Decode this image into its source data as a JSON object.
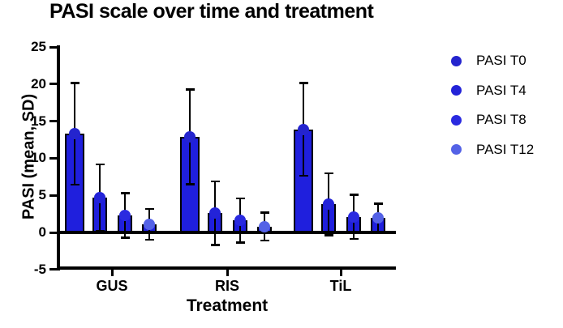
{
  "title": "PASI scale over time and treatment",
  "axes": {
    "y_label": "PASI (mean, SD)",
    "x_label": "Treatment",
    "y_ticks": [
      25,
      20,
      15,
      10,
      5,
      0,
      -5
    ],
    "categories": [
      "GUS",
      "RIS",
      "TiL"
    ]
  },
  "legend": {
    "items": [
      {
        "label": "PASI T0",
        "color": "#2424ce"
      },
      {
        "label": "PASI T4",
        "color": "#2323d8"
      },
      {
        "label": "PASI T8",
        "color": "#2a2ae0"
      },
      {
        "label": "PASI T12",
        "color": "#5462e6"
      }
    ]
  },
  "colors": {
    "bar_fill": "#1f1fdd",
    "axis": "#000000"
  },
  "chart_data": {
    "type": "bar",
    "title": "PASI scale over time and treatment",
    "xlabel": "Treatment",
    "ylabel": "PASI (mean, SD)",
    "ylim": [
      -5,
      25
    ],
    "categories": [
      "GUS",
      "RIS",
      "TiL"
    ],
    "error_bars": "SD",
    "legend_position": "right",
    "grid": false,
    "bar_fill": "#1f1fdd",
    "series": [
      {
        "name": "PASI T0",
        "means": [
          13.3,
          12.9,
          13.9
        ],
        "sd": [
          6.9,
          6.4,
          6.3
        ],
        "marker_color": "#2424ce"
      },
      {
        "name": "PASI T4",
        "means": [
          4.7,
          2.6,
          3.8
        ],
        "sd": [
          4.5,
          4.3,
          4.2
        ],
        "marker_color": "#2323d8"
      },
      {
        "name": "PASI T8",
        "means": [
          2.3,
          1.6,
          2.1
        ],
        "sd": [
          3.0,
          3.0,
          3.0
        ],
        "marker_color": "#2a2ae0"
      },
      {
        "name": "PASI T12",
        "means": [
          1.1,
          0.8,
          2.0
        ],
        "sd": [
          2.1,
          1.9,
          1.9
        ],
        "marker_color": "#5462e6"
      }
    ]
  }
}
